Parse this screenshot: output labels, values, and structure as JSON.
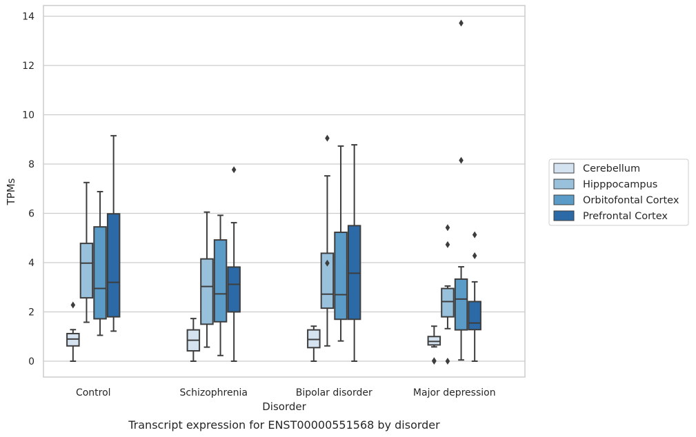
{
  "chart_data": {
    "type": "box",
    "title": "",
    "caption": "Transcript expression for ENST00000551568 by disorder",
    "xlabel": "Disorder",
    "ylabel": "TPMs",
    "ylim": [
      -0.65,
      14.4
    ],
    "yticks": [
      0,
      2,
      4,
      6,
      8,
      10,
      12,
      14
    ],
    "grid": true,
    "legend_position": "right",
    "categories": [
      "Control",
      "Schizophrenia",
      "Bipolar disorder",
      "Major depression"
    ],
    "series": [
      {
        "name": "Cerebellum",
        "color": "#d5e3f1",
        "boxes": [
          {
            "whislo": 0.0,
            "q1": 0.62,
            "med": 0.9,
            "q3": 1.12,
            "whishi": 1.28,
            "fliers": [
              2.28
            ]
          },
          {
            "whislo": 0.0,
            "q1": 0.42,
            "med": 0.85,
            "q3": 1.27,
            "whishi": 1.73,
            "fliers": []
          },
          {
            "whislo": 0.0,
            "q1": 0.55,
            "med": 0.88,
            "q3": 1.27,
            "whishi": 1.42,
            "fliers": []
          },
          {
            "whislo": 0.58,
            "q1": 0.66,
            "med": 0.8,
            "q3": 1.0,
            "whishi": 1.42,
            "fliers": [
              0.0,
              0.02
            ]
          }
        ]
      },
      {
        "name": "Hipppocampus",
        "color": "#9ac1dc",
        "boxes": [
          {
            "whislo": 1.58,
            "q1": 2.57,
            "med": 3.98,
            "q3": 4.78,
            "whishi": 7.25,
            "fliers": []
          },
          {
            "whislo": 0.57,
            "q1": 1.5,
            "med": 3.03,
            "q3": 4.15,
            "whishi": 6.05,
            "fliers": []
          },
          {
            "whislo": 0.62,
            "q1": 2.15,
            "med": 2.72,
            "q3": 4.38,
            "whishi": 7.52,
            "fliers": [
              3.98,
              9.05
            ]
          },
          {
            "whislo": 1.32,
            "q1": 1.8,
            "med": 2.42,
            "q3": 2.95,
            "whishi": 3.05,
            "fliers": [
              0.0,
              5.42,
              4.73
            ]
          }
        ]
      },
      {
        "name": "Orbitofontal Cortex",
        "color": "#5a9bc8",
        "boxes": [
          {
            "whislo": 1.05,
            "q1": 1.72,
            "med": 2.95,
            "q3": 5.45,
            "whishi": 6.88,
            "fliers": []
          },
          {
            "whislo": 0.23,
            "q1": 1.6,
            "med": 2.73,
            "q3": 4.92,
            "whishi": 5.92,
            "fliers": []
          },
          {
            "whislo": 0.82,
            "q1": 1.7,
            "med": 2.7,
            "q3": 5.23,
            "whishi": 8.73,
            "fliers": []
          },
          {
            "whislo": 0.05,
            "q1": 1.27,
            "med": 2.52,
            "q3": 3.33,
            "whishi": 3.83,
            "fliers": [
              8.15,
              13.72
            ]
          }
        ]
      },
      {
        "name": "Prefrontal Cortex",
        "color": "#2b6aa6",
        "boxes": [
          {
            "whislo": 1.22,
            "q1": 1.8,
            "med": 3.2,
            "q3": 5.98,
            "whishi": 9.15,
            "fliers": []
          },
          {
            "whislo": 0.0,
            "q1": 2.0,
            "med": 3.12,
            "q3": 3.82,
            "whishi": 5.62,
            "fliers": [
              7.77
            ]
          },
          {
            "whislo": 0.0,
            "q1": 1.7,
            "med": 3.57,
            "q3": 5.5,
            "whishi": 8.78,
            "fliers": []
          },
          {
            "whislo": 0.0,
            "q1": 1.28,
            "med": 1.55,
            "q3": 2.42,
            "whishi": 3.22,
            "fliers": [
              4.28,
              5.13
            ]
          }
        ]
      }
    ]
  }
}
